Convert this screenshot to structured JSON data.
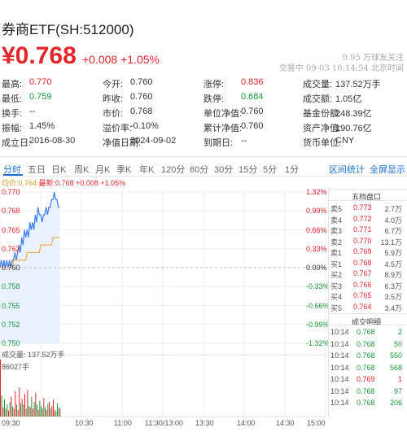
{
  "header": {
    "title": "券商ETF(SH:512000)",
    "price": "¥0.768",
    "change": "+0.008 +1.05%",
    "followers": "9.95 万球友关注",
    "trade_time": "交易中 09-03 10:14:54 北京时间"
  },
  "stats": [
    [
      {
        "label": "最高:",
        "value": "0.770",
        "color": "red"
      },
      {
        "label": "今开:",
        "value": "0.760",
        "color": "plain"
      },
      {
        "label": "涨停:",
        "value": "0.836",
        "color": "red"
      },
      {
        "label": "成交量:",
        "value": "137.52万手",
        "color": "plain"
      }
    ],
    [
      {
        "label": "最低:",
        "value": "0.759",
        "color": "green"
      },
      {
        "label": "昨收:",
        "value": "0.760",
        "color": "plain"
      },
      {
        "label": "跌停:",
        "value": "0.684",
        "color": "green"
      },
      {
        "label": "成交额:",
        "value": "1.05亿",
        "color": "plain"
      }
    ],
    [
      {
        "label": "换手:",
        "value": "--",
        "color": "plain"
      },
      {
        "label": "市价:",
        "value": "0.768",
        "color": "plain"
      },
      {
        "label": "单位净值:",
        "value": "0.760",
        "color": "plain"
      },
      {
        "label": "基金份额:",
        "value": "248.39亿",
        "color": "plain"
      }
    ],
    [
      {
        "label": "振幅:",
        "value": "1.45%",
        "color": "plain"
      },
      {
        "label": "溢价率:",
        "value": "-0.10%",
        "color": "plain"
      },
      {
        "label": "累计净值:",
        "value": "0.760",
        "color": "plain"
      },
      {
        "label": "资产净值:",
        "value": "190.76亿",
        "color": "plain"
      }
    ],
    [
      {
        "label": "成立日:",
        "value": "2016-08-30",
        "color": "plain"
      },
      {
        "label": "净值日期:",
        "value": "2024-09-02",
        "color": "plain"
      },
      {
        "label": "到期日:",
        "value": "--",
        "color": "plain"
      },
      {
        "label": "货币单位:",
        "value": "CNY",
        "color": "plain"
      }
    ]
  ],
  "tabs": [
    "分时",
    "五日",
    "日K",
    "周K",
    "月K",
    "季K",
    "年K",
    "120分",
    "60分",
    "30分",
    "15分",
    "5分",
    "1分"
  ],
  "tab_links": [
    "区间统计",
    "全屏显示"
  ],
  "legend": {
    "avg": "均价:0.764",
    "latest": "最新:0.768 +0.008 +1.05%"
  },
  "y_axis": {
    "prices": [
      "0.770",
      "0.768",
      "0.765",
      "0.762",
      "0.760",
      "0.758",
      "0.755",
      "0.752",
      "0.750"
    ],
    "percents": [
      "1.32%",
      "0.99%",
      "0.66%",
      "0.33%",
      "0.00%",
      "-0.33%",
      "-0.66%",
      "-0.99%",
      "-1.32%"
    ]
  },
  "volume": {
    "label": "成交量: 137.52万手",
    "max": "86027手"
  },
  "time_axis": [
    "09:30",
    "10:30",
    "11:00",
    "11:30/13:00",
    "13:30",
    "14:00",
    "14:30",
    "15:00"
  ],
  "order_book": {
    "title": "五档盘口",
    "rows": [
      {
        "label": "卖5",
        "price": "0.773",
        "vol": "2.7万"
      },
      {
        "label": "卖4",
        "price": "0.772",
        "vol": "4.0万"
      },
      {
        "label": "卖3",
        "price": "0.771",
        "vol": "6.7万"
      },
      {
        "label": "卖2",
        "price": "0.770",
        "vol": "13.1万"
      },
      {
        "label": "卖1",
        "price": "0.769",
        "vol": "5.9万"
      },
      {
        "label": "买1",
        "price": "0.768",
        "vol": "4.5万"
      },
      {
        "label": "买2",
        "price": "0.767",
        "vol": "8.9万"
      },
      {
        "label": "买3",
        "price": "0.766",
        "vol": "6.3万"
      },
      {
        "label": "买4",
        "price": "0.765",
        "vol": "3.5万"
      },
      {
        "label": "买5",
        "price": "0.764",
        "vol": "3.4万"
      }
    ]
  },
  "trades": {
    "title": "成交明细",
    "rows": [
      {
        "time": "10:14",
        "price": "0.768",
        "vol": "2",
        "color": "green"
      },
      {
        "time": "10:14",
        "price": "0.768",
        "vol": "50",
        "color": "green"
      },
      {
        "time": "10:14",
        "price": "0.768",
        "vol": "550",
        "color": "green"
      },
      {
        "time": "10:14",
        "price": "0.768",
        "vol": "568",
        "color": "green"
      },
      {
        "time": "10:14",
        "price": "0.769",
        "vol": "1",
        "color": "red"
      },
      {
        "time": "10:14",
        "price": "0.768",
        "vol": "97",
        "color": "green"
      },
      {
        "time": "10:14",
        "price": "0.768",
        "vol": "206",
        "color": "green"
      }
    ]
  },
  "colors": {
    "up": "#e6242b",
    "down": "#1a9a3b",
    "accent": "#1f6fd1",
    "avg_line": "#f0a430",
    "price_line": "#3b7ee8"
  },
  "chart_data": {
    "type": "line",
    "x": [
      "09:30",
      "09:31",
      "09:32",
      "09:33",
      "09:34",
      "09:35",
      "09:36",
      "09:37",
      "09:38",
      "09:39",
      "09:40",
      "09:41",
      "09:42",
      "09:43",
      "09:44",
      "09:45",
      "09:46",
      "09:47",
      "09:48",
      "09:49",
      "09:50",
      "09:51",
      "09:52",
      "09:53",
      "09:54",
      "09:55",
      "09:56",
      "09:57",
      "09:58",
      "09:59",
      "10:00",
      "10:01",
      "10:02",
      "10:03",
      "10:04",
      "10:05",
      "10:06",
      "10:07",
      "10:08",
      "10:09",
      "10:10",
      "10:11",
      "10:12",
      "10:13",
      "10:14"
    ],
    "series": [
      {
        "values": [
          0.76,
          0.761,
          0.76,
          0.761,
          0.76,
          0.761,
          0.76,
          0.761,
          0.76,
          0.761,
          0.761,
          0.762,
          0.761,
          0.762,
          0.763,
          0.762,
          0.764,
          0.763,
          0.765,
          0.764,
          0.765,
          0.764,
          0.766,
          0.765,
          0.766,
          0.765,
          0.767,
          0.766,
          0.768,
          0.767,
          0.767,
          0.766,
          0.767,
          0.767,
          0.768,
          0.767,
          0.768,
          0.768,
          0.769,
          0.769,
          0.77,
          0.769,
          0.769,
          0.768,
          0.768
        ]
      },
      {
        "values": [
          0.76,
          0.76,
          0.76,
          0.76,
          0.76,
          0.76,
          0.76,
          0.76,
          0.76,
          0.76,
          0.761,
          0.761,
          0.761,
          0.761,
          0.761,
          0.761,
          0.761,
          0.761,
          0.761,
          0.761,
          0.762,
          0.762,
          0.762,
          0.762,
          0.762,
          0.762,
          0.762,
          0.762,
          0.762,
          0.762,
          0.763,
          0.763,
          0.763,
          0.763,
          0.763,
          0.763,
          0.763,
          0.763,
          0.763,
          0.764,
          0.764,
          0.764,
          0.764,
          0.764,
          0.764
        ]
      }
    ],
    "volume": [
      86027,
      32000,
      14000,
      26000,
      12000,
      18000,
      9000,
      22000,
      30000,
      15000,
      12000,
      38000,
      18000,
      10000,
      44000,
      20000,
      27000,
      18000,
      34000,
      12000,
      40000,
      16000,
      14000,
      30000,
      12000,
      22000,
      36000,
      18000,
      10000,
      24000,
      16000,
      12000,
      28000,
      14000,
      10000,
      19000,
      22000,
      12000,
      16000,
      26000,
      10000,
      8000,
      20000,
      14000,
      12000
    ],
    "volume_colors": [
      "red",
      "green",
      "red",
      "green",
      "red",
      "green",
      "red",
      "green",
      "red",
      "green",
      "red",
      "red",
      "green",
      "red",
      "red",
      "green",
      "red",
      "green",
      "red",
      "green",
      "red",
      "green",
      "red",
      "green",
      "red",
      "green",
      "red",
      "green",
      "red",
      "green",
      "green",
      "green",
      "red",
      "green",
      "red",
      "green",
      "red",
      "green",
      "red",
      "red",
      "red",
      "green",
      "green",
      "green",
      "red"
    ],
    "ylim": [
      0.75,
      0.77
    ],
    "prev_close": 0.76
  }
}
